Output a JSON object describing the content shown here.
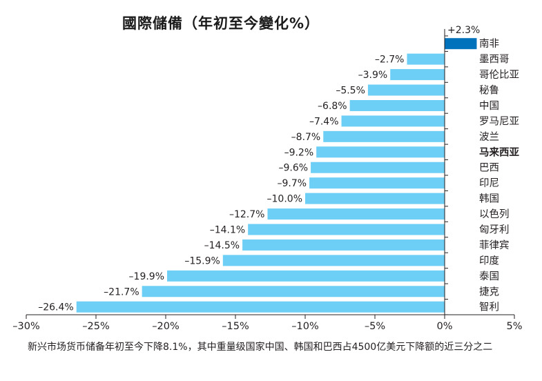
{
  "chart_data": {
    "type": "bar",
    "orientation": "horizontal",
    "title": "國際儲備（年初至今變化%）",
    "xlabel": "",
    "ylabel": "",
    "xlim": [
      -30,
      5
    ],
    "xticks": [
      -30,
      -25,
      -20,
      -15,
      -10,
      -5,
      0,
      5
    ],
    "xtick_labels": [
      "–30%",
      "–25%",
      "–20%",
      "–15%",
      "–10%",
      "–5%",
      "0%",
      "5%"
    ],
    "categories": [
      "南非",
      "墨西哥",
      "哥伦比亚",
      "秘鲁",
      "中国",
      "罗马尼亚",
      "波兰",
      "马来西亚",
      "巴西",
      "印尼",
      "韩国",
      "以色列",
      "匈牙利",
      "菲律宾",
      "印度",
      "泰国",
      "捷克",
      "智利"
    ],
    "values": [
      2.3,
      -2.7,
      -3.9,
      -5.5,
      -6.8,
      -7.4,
      -8.7,
      -9.2,
      -9.6,
      -9.7,
      -10.0,
      -12.7,
      -14.1,
      -14.5,
      -15.9,
      -19.9,
      -21.7,
      -26.4
    ],
    "value_labels": [
      "+2.3%",
      "–2.7%",
      "–3.9%",
      "–5.5%",
      "–6.8%",
      "–7.4%",
      "–8.7%",
      "–9.2%",
      "–9.6%",
      "–9.7%",
      "–10.0%",
      "–12.7%",
      "–14.1%",
      "–14.5%",
      "–15.9%",
      "–19.9%",
      "–21.7%",
      "–26.4%"
    ],
    "bold_categories": [
      "马来西亚"
    ],
    "grid": false,
    "legend": "none",
    "colors": {
      "negative": "#6dcff6",
      "positive": "#0072bc",
      "axis": "#231f20"
    }
  },
  "caption": "新兴市场货币储备年初至今下降8.1%，其中重量级国家中国、韩国和巴西占4500亿美元下降额的近三分之二"
}
